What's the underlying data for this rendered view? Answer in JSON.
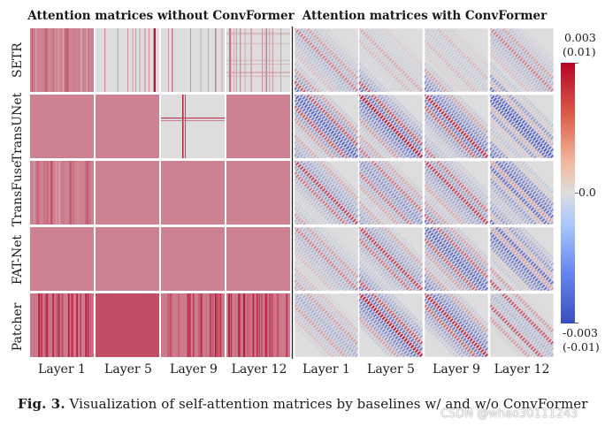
{
  "chart_data": {
    "type": "heatmap",
    "panel_titles": [
      "Attention matrices without ConvFormer",
      "Attention matrices with ConvFormer"
    ],
    "models": [
      "SETR",
      "TransUNet",
      "TransFuse",
      "FAT-Net",
      "Patcher"
    ],
    "layers": [
      "Layer 1",
      "Layer 5",
      "Layer 9",
      "Layer 12"
    ],
    "colorbar": {
      "max_label": "0.003",
      "max_label_alt": "(0.01)",
      "mid_label": "0.0",
      "min_label": "-0.003",
      "min_label_alt": "(-0.01)",
      "vmin": -0.003,
      "vcenter": 0.0,
      "vmax": 0.003,
      "colormap": "coolwarm",
      "low_color": "#3b4cc0",
      "mid_color": "#dddddd",
      "high_color": "#b40426"
    },
    "tiles": [
      {
        "model": "SETR",
        "panel": "without",
        "layer": "Layer 1",
        "pattern": "vertical-stripes"
      },
      {
        "model": "SETR",
        "panel": "without",
        "layer": "Layer 5",
        "pattern": "sparse-dots"
      },
      {
        "model": "SETR",
        "panel": "without",
        "layer": "Layer 9",
        "pattern": "sparse-stripes"
      },
      {
        "model": "SETR",
        "panel": "without",
        "layer": "Layer 12",
        "pattern": "faint-grid"
      },
      {
        "model": "SETR",
        "panel": "with",
        "layer": "Layer 1",
        "pattern": "diagonal-weak"
      },
      {
        "model": "SETR",
        "panel": "with",
        "layer": "Layer 5",
        "pattern": "diagonal-faint"
      },
      {
        "model": "SETR",
        "panel": "with",
        "layer": "Layer 9",
        "pattern": "diagonal-faint"
      },
      {
        "model": "SETR",
        "panel": "with",
        "layer": "Layer 12",
        "pattern": "diagonal-weak"
      },
      {
        "model": "TransUNet",
        "panel": "without",
        "layer": "Layer 1",
        "pattern": "uniform"
      },
      {
        "model": "TransUNet",
        "panel": "without",
        "layer": "Layer 5",
        "pattern": "uniform"
      },
      {
        "model": "TransUNet",
        "panel": "without",
        "layer": "Layer 9",
        "pattern": "cross"
      },
      {
        "model": "TransUNet",
        "panel": "without",
        "layer": "Layer 12",
        "pattern": "uniform"
      },
      {
        "model": "TransUNet",
        "panel": "with",
        "layer": "Layer 1",
        "pattern": "diagonal-strong"
      },
      {
        "model": "TransUNet",
        "panel": "with",
        "layer": "Layer 5",
        "pattern": "diagonal-strong"
      },
      {
        "model": "TransUNet",
        "panel": "with",
        "layer": "Layer 9",
        "pattern": "diagonal-mixed"
      },
      {
        "model": "TransUNet",
        "panel": "with",
        "layer": "Layer 12",
        "pattern": "diagonal-blue"
      },
      {
        "model": "TransFuse",
        "panel": "without",
        "layer": "Layer 1",
        "pattern": "vertical-stripes"
      },
      {
        "model": "TransFuse",
        "panel": "without",
        "layer": "Layer 5",
        "pattern": "uniform"
      },
      {
        "model": "TransFuse",
        "panel": "without",
        "layer": "Layer 9",
        "pattern": "uniform"
      },
      {
        "model": "TransFuse",
        "panel": "without",
        "layer": "Layer 12",
        "pattern": "uniform"
      },
      {
        "model": "TransFuse",
        "panel": "with",
        "layer": "Layer 1",
        "pattern": "diagonal-medium"
      },
      {
        "model": "TransFuse",
        "panel": "with",
        "layer": "Layer 5",
        "pattern": "diagonal-medium"
      },
      {
        "model": "TransFuse",
        "panel": "with",
        "layer": "Layer 9",
        "pattern": "diagonal-medium"
      },
      {
        "model": "TransFuse",
        "panel": "with",
        "layer": "Layer 12",
        "pattern": "diagonal-blue"
      },
      {
        "model": "FAT-Net",
        "panel": "without",
        "layer": "Layer 1",
        "pattern": "uniform"
      },
      {
        "model": "FAT-Net",
        "panel": "without",
        "layer": "Layer 5",
        "pattern": "uniform"
      },
      {
        "model": "FAT-Net",
        "panel": "without",
        "layer": "Layer 9",
        "pattern": "uniform"
      },
      {
        "model": "FAT-Net",
        "panel": "without",
        "layer": "Layer 12",
        "pattern": "uniform"
      },
      {
        "model": "FAT-Net",
        "panel": "with",
        "layer": "Layer 1",
        "pattern": "diagonal-weak"
      },
      {
        "model": "FAT-Net",
        "panel": "with",
        "layer": "Layer 5",
        "pattern": "diagonal-medium"
      },
      {
        "model": "FAT-Net",
        "panel": "with",
        "layer": "Layer 9",
        "pattern": "diagonal-mixed"
      },
      {
        "model": "FAT-Net",
        "panel": "with",
        "layer": "Layer 12",
        "pattern": "diagonal-blue"
      },
      {
        "model": "Patcher",
        "panel": "without",
        "layer": "Layer 1",
        "pattern": "dense-stripes"
      },
      {
        "model": "Patcher",
        "panel": "without",
        "layer": "Layer 5",
        "pattern": "uniform-dark"
      },
      {
        "model": "Patcher",
        "panel": "without",
        "layer": "Layer 9",
        "pattern": "dense-stripes"
      },
      {
        "model": "Patcher",
        "panel": "without",
        "layer": "Layer 12",
        "pattern": "dense-stripes"
      },
      {
        "model": "Patcher",
        "panel": "with",
        "layer": "Layer 1",
        "pattern": "diagonal-weak"
      },
      {
        "model": "Patcher",
        "panel": "with",
        "layer": "Layer 5",
        "pattern": "diagonal-strong"
      },
      {
        "model": "Patcher",
        "panel": "with",
        "layer": "Layer 9",
        "pattern": "diagonal-mixed"
      },
      {
        "model": "Patcher",
        "panel": "with",
        "layer": "Layer 12",
        "pattern": "diagonal-red"
      }
    ]
  },
  "caption": {
    "label": "Fig. 3.",
    "text": "Visualization of self-attention matrices by baselines w/ and w/o ConvFormer"
  },
  "watermark": "CSDN @whao30111243"
}
